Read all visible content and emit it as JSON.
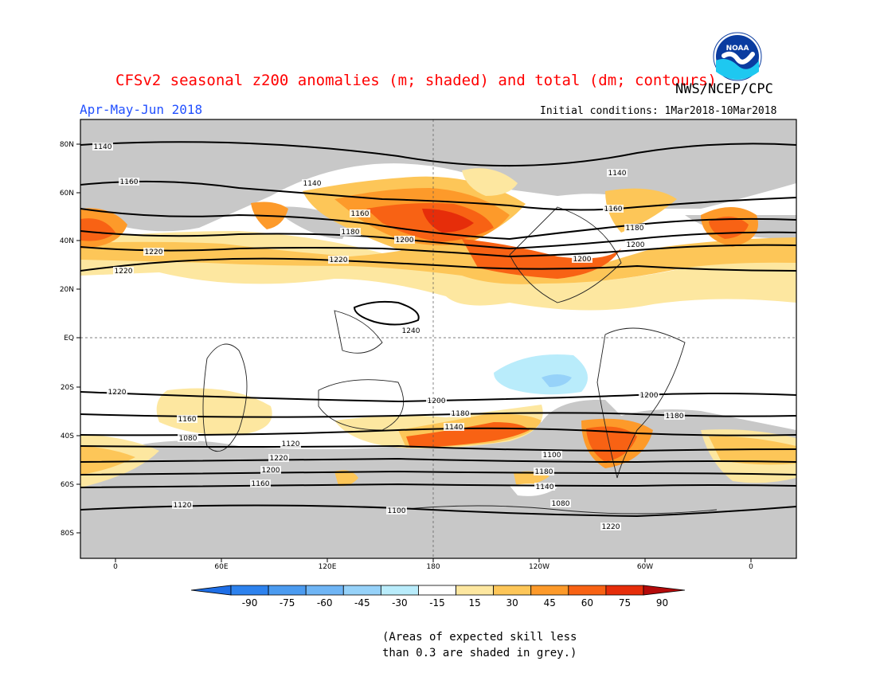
{
  "header": {
    "title": "CFSv2 seasonal z200 anomalies (m; shaded) and total (dm; contours)",
    "agency": "NWS/NCEP/CPC",
    "season": "Apr-May-Jun 2018",
    "initial_conditions": "Initial conditions: 1Mar2018-10Mar2018",
    "logo_text": "NOAA"
  },
  "map": {
    "lat_labels": [
      "80N",
      "60N",
      "40N",
      "20N",
      "EQ",
      "20S",
      "40S",
      "60S",
      "80S"
    ],
    "lon_labels": [
      "0",
      "60E",
      "120E",
      "180",
      "120W",
      "60W",
      "0"
    ],
    "contour_labels": [
      "1140",
      "1140",
      "1160",
      "1140",
      "1160",
      "1180",
      "1200",
      "1200",
      "1220",
      "1220",
      "1160",
      "1180",
      "1200",
      "1220",
      "1240",
      "1220",
      "1200",
      "1180",
      "1160",
      "1140",
      "1120",
      "1100",
      "1080",
      "1220",
      "1200",
      "1180",
      "1160",
      "1140",
      "1120",
      "1100",
      "1080",
      "1220",
      "1200",
      "1180"
    ]
  },
  "colorbar": {
    "ticks": [
      "-90",
      "-75",
      "-60",
      "-45",
      "-30",
      "-15",
      "15",
      "30",
      "45",
      "60",
      "75",
      "90"
    ],
    "colors": [
      "#1e6ee6",
      "#2d82ee",
      "#4b9bf0",
      "#6fb5f5",
      "#96d2f9",
      "#b9ecfb",
      "#ffffff",
      "#fde7a0",
      "#fdc658",
      "#fd9a2a",
      "#f86214",
      "#e62d0a",
      "#b40a0a"
    ]
  },
  "notes": {
    "line1": "(Areas of expected skill less",
    "line2": "than 0.3 are shaded in grey.)"
  }
}
